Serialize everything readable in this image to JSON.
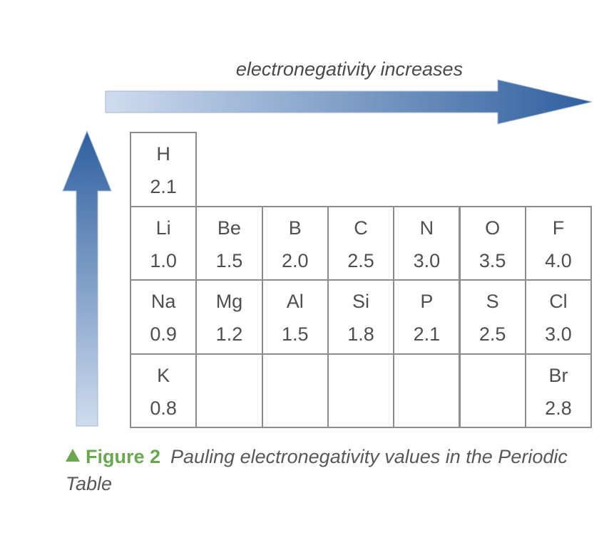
{
  "arrows": {
    "horizontal_label": "electronegativity increases",
    "gradient_light": "#cfdcee",
    "gradient_dark": "#2e5f9e"
  },
  "table": {
    "cells": [
      {
        "row": 0,
        "col": 0,
        "symbol": "H",
        "value": "2.1"
      },
      {
        "row": 1,
        "col": 0,
        "symbol": "Li",
        "value": "1.0"
      },
      {
        "row": 1,
        "col": 1,
        "symbol": "Be",
        "value": "1.5"
      },
      {
        "row": 1,
        "col": 2,
        "symbol": "B",
        "value": "2.0"
      },
      {
        "row": 1,
        "col": 3,
        "symbol": "C",
        "value": "2.5"
      },
      {
        "row": 1,
        "col": 4,
        "symbol": "N",
        "value": "3.0"
      },
      {
        "row": 1,
        "col": 5,
        "symbol": "O",
        "value": "3.5"
      },
      {
        "row": 1,
        "col": 6,
        "symbol": "F",
        "value": "4.0"
      },
      {
        "row": 2,
        "col": 0,
        "symbol": "Na",
        "value": "0.9"
      },
      {
        "row": 2,
        "col": 1,
        "symbol": "Mg",
        "value": "1.2"
      },
      {
        "row": 2,
        "col": 2,
        "symbol": "Al",
        "value": "1.5"
      },
      {
        "row": 2,
        "col": 3,
        "symbol": "Si",
        "value": "1.8"
      },
      {
        "row": 2,
        "col": 4,
        "symbol": "P",
        "value": "2.1"
      },
      {
        "row": 2,
        "col": 5,
        "symbol": "S",
        "value": "2.5"
      },
      {
        "row": 2,
        "col": 6,
        "symbol": "Cl",
        "value": "3.0"
      },
      {
        "row": 3,
        "col": 0,
        "symbol": "K",
        "value": "0.8"
      },
      {
        "row": 3,
        "col": 1,
        "symbol": "",
        "value": ""
      },
      {
        "row": 3,
        "col": 2,
        "symbol": "",
        "value": ""
      },
      {
        "row": 3,
        "col": 3,
        "symbol": "",
        "value": ""
      },
      {
        "row": 3,
        "col": 4,
        "symbol": "",
        "value": ""
      },
      {
        "row": 3,
        "col": 5,
        "symbol": "",
        "value": ""
      },
      {
        "row": 3,
        "col": 6,
        "symbol": "Br",
        "value": "2.8"
      }
    ]
  },
  "caption": {
    "label": "Figure 2",
    "text": "Pauling electronegativity values in the Periodic Table",
    "accent_color": "#6aa84f"
  }
}
